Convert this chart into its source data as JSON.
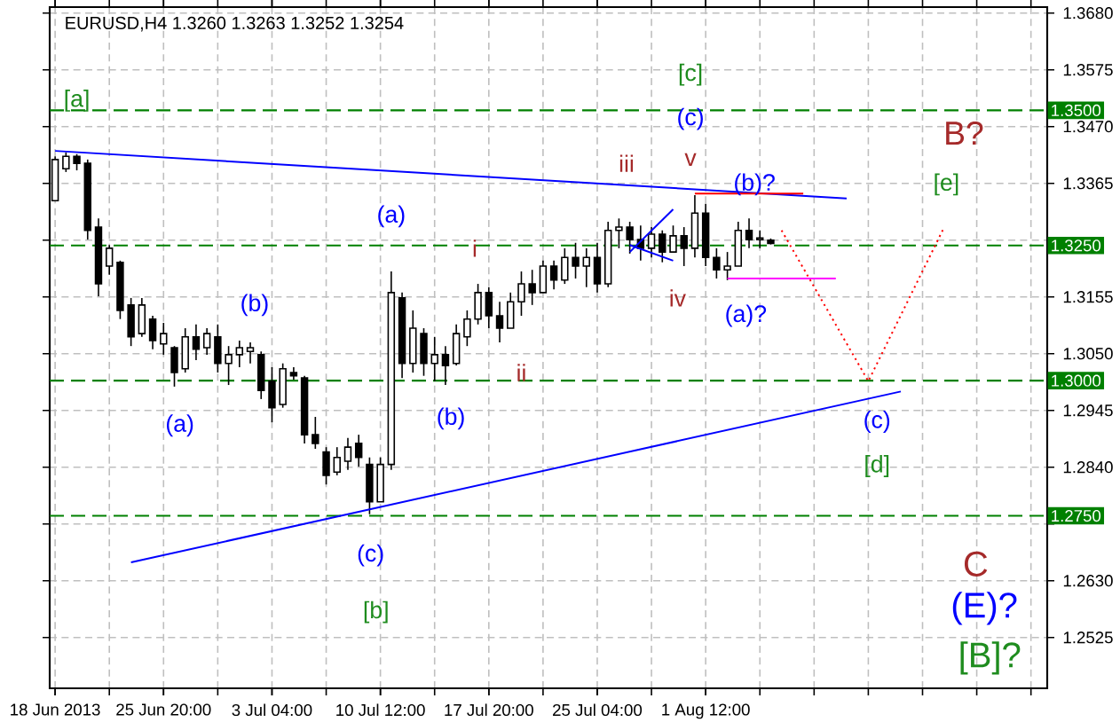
{
  "chart_data": {
    "type": "candlestick",
    "title": "EURUSD,H4  1.3260 1.3263 1.3252 1.3254",
    "color": "#000000",
    "categories": [
      "18 Jun 2013",
      null,
      null,
      null,
      null,
      null,
      null,
      null,
      null,
      null,
      "25 Jun 20:00",
      null,
      null,
      null,
      null,
      null,
      null,
      null,
      null,
      null,
      "3 Jul 04:00",
      null,
      null,
      null,
      null,
      null,
      null,
      null,
      null,
      null,
      "10 Jul 12:00",
      null,
      null,
      null,
      null,
      null,
      null,
      null,
      null,
      null,
      "17 Jul 20:00",
      null,
      null,
      null,
      null,
      null,
      null,
      null,
      null,
      null,
      "25 Jul 04:00",
      null,
      null,
      null,
      null,
      null,
      null,
      null,
      null,
      null,
      "1 Aug 12:00",
      null,
      null,
      null,
      null,
      null,
      null,
      null,
      null,
      null,
      null,
      null,
      null,
      null,
      null,
      null,
      null,
      null,
      null,
      null,
      null,
      null,
      null,
      null,
      null,
      null,
      null,
      null,
      null,
      null,
      null,
      null
    ],
    "ohlc": [
      [
        1.3333,
        1.3415,
        1.3333,
        1.3409
      ],
      [
        1.3392,
        1.3422,
        1.3386,
        1.3415
      ],
      [
        1.3415,
        1.3419,
        1.3389,
        1.3402
      ],
      [
        1.3402,
        1.3409,
        1.3261,
        1.3278
      ],
      [
        1.3284,
        1.33,
        1.3156,
        1.3179
      ],
      [
        1.3212,
        1.3251,
        1.3196,
        1.3245
      ],
      [
        1.3219,
        1.3222,
        1.3114,
        1.313
      ],
      [
        1.314,
        1.3153,
        1.3064,
        1.3081
      ],
      [
        1.3087,
        1.3153,
        1.3081,
        1.314
      ],
      [
        1.3114,
        1.312,
        1.3058,
        1.3074
      ],
      [
        1.3068,
        1.3107,
        1.3048,
        1.3087
      ],
      [
        1.3061,
        1.3064,
        1.2989,
        1.3015
      ],
      [
        1.3022,
        1.3097,
        1.3015,
        1.3081
      ],
      [
        1.3081,
        1.3104,
        1.3038,
        1.3058
      ],
      [
        1.3061,
        1.3097,
        1.3048,
        1.3087
      ],
      [
        1.3081,
        1.3104,
        1.3015,
        1.3032
      ],
      [
        1.3032,
        1.3064,
        1.2992,
        1.3048
      ],
      [
        1.3048,
        1.3074,
        1.3025,
        1.3061
      ],
      [
        1.3054,
        1.3071,
        1.3032,
        1.3061
      ],
      [
        1.3048,
        1.3054,
        1.2966,
        1.2982
      ],
      [
        1.2999,
        1.3025,
        1.2923,
        1.295
      ],
      [
        1.2956,
        1.3032,
        1.295,
        1.3022
      ],
      [
        1.3015,
        1.3025,
        1.3002,
        1.3009
      ],
      [
        1.3005,
        1.3009,
        1.2884,
        1.29
      ],
      [
        1.29,
        1.2933,
        1.2874,
        1.2884
      ],
      [
        1.2868,
        1.2877,
        1.2808,
        1.2825
      ],
      [
        1.2831,
        1.2877,
        1.2825,
        1.2858
      ],
      [
        1.2851,
        1.2894,
        1.2835,
        1.2877
      ],
      [
        1.2884,
        1.29,
        1.2841,
        1.2858
      ],
      [
        1.2845,
        1.2858,
        1.2753,
        1.2776
      ],
      [
        1.2776,
        1.2858,
        1.2776,
        1.2845
      ],
      [
        1.2845,
        1.3202,
        1.2835,
        1.3163
      ],
      [
        1.3153,
        1.3163,
        1.3005,
        1.3032
      ],
      [
        1.3032,
        1.313,
        1.3015,
        1.3097
      ],
      [
        1.3087,
        1.3097,
        1.3009,
        1.3032
      ],
      [
        1.3032,
        1.3081,
        1.2999,
        1.3048
      ],
      [
        1.3048,
        1.3064,
        1.2992,
        1.3028
      ],
      [
        1.3032,
        1.3104,
        1.3028,
        1.3087
      ],
      [
        1.3081,
        1.313,
        1.3064,
        1.3114
      ],
      [
        1.3114,
        1.3179,
        1.3104,
        1.3163
      ],
      [
        1.3163,
        1.3173,
        1.3097,
        1.312
      ],
      [
        1.312,
        1.3146,
        1.3071,
        1.3097
      ],
      [
        1.3097,
        1.3163,
        1.3097,
        1.3146
      ],
      [
        1.3146,
        1.3202,
        1.312,
        1.3179
      ],
      [
        1.3179,
        1.3205,
        1.314,
        1.3163
      ],
      [
        1.3163,
        1.3222,
        1.3163,
        1.3212
      ],
      [
        1.3212,
        1.3222,
        1.3169,
        1.3186
      ],
      [
        1.3186,
        1.3245,
        1.3179,
        1.3228
      ],
      [
        1.3228,
        1.3255,
        1.3189,
        1.3212
      ],
      [
        1.3212,
        1.3245,
        1.3173,
        1.3228
      ],
      [
        1.3228,
        1.3255,
        1.3163,
        1.3179
      ],
      [
        1.3179,
        1.3294,
        1.3173,
        1.3278
      ],
      [
        1.3278,
        1.33,
        1.3245,
        1.3284
      ],
      [
        1.3284,
        1.3294,
        1.3235,
        1.3261
      ],
      [
        1.3261,
        1.3287,
        1.3222,
        1.3245
      ],
      [
        1.3245,
        1.3284,
        1.3228,
        1.3271
      ],
      [
        1.3271,
        1.3278,
        1.3219,
        1.3238
      ],
      [
        1.3238,
        1.3287,
        1.3238,
        1.3268
      ],
      [
        1.3268,
        1.3284,
        1.3212,
        1.3245
      ],
      [
        1.3245,
        1.3343,
        1.3228,
        1.331
      ],
      [
        1.331,
        1.3327,
        1.3212,
        1.3228
      ],
      [
        1.3228,
        1.3245,
        1.3189,
        1.3205
      ],
      [
        1.3205,
        1.3238,
        1.3186,
        1.3212
      ],
      [
        1.3212,
        1.3294,
        1.3212,
        1.3278
      ],
      [
        1.3278,
        1.33,
        1.3245,
        1.3261
      ],
      [
        1.3261,
        1.3278,
        1.3245,
        1.3264
      ],
      [
        1.326,
        1.3263,
        1.3252,
        1.3254
      ],
      null,
      null,
      null,
      null,
      null,
      null,
      null,
      null,
      null,
      null,
      null,
      null,
      null,
      null,
      null,
      null,
      null,
      null,
      null,
      null,
      null,
      null,
      null,
      null,
      null
    ],
    "series": [
      {
        "type": "line",
        "color": "#0000ff",
        "values": [
          1.3425,
          null,
          null,
          null,
          null,
          null,
          null,
          null,
          null,
          null,
          null,
          null,
          null,
          null,
          null,
          null,
          null,
          null,
          null,
          null,
          null,
          null,
          null,
          null,
          null,
          null,
          null,
          null,
          null,
          null,
          null,
          null,
          null,
          null,
          null,
          null,
          null,
          null,
          null,
          null,
          null,
          null,
          null,
          null,
          null,
          null,
          null,
          null,
          null,
          null,
          null,
          null,
          null,
          null,
          null,
          null,
          null,
          null,
          null,
          null,
          null,
          null,
          null,
          null,
          null,
          null,
          null,
          null,
          null,
          null,
          null,
          null,
          null,
          1.3337,
          null,
          null,
          null,
          null,
          null,
          null,
          null,
          null,
          null,
          null,
          null,
          null,
          null,
          null,
          null,
          null,
          null,
          null
        ]
      },
      {
        "type": "line",
        "color": "#0000ff",
        "values": [
          null,
          null,
          null,
          null,
          null,
          null,
          null,
          1.2664,
          null,
          null,
          null,
          null,
          null,
          null,
          null,
          null,
          null,
          null,
          null,
          null,
          null,
          null,
          null,
          null,
          null,
          null,
          null,
          null,
          null,
          null,
          null,
          null,
          null,
          null,
          null,
          null,
          null,
          null,
          null,
          null,
          null,
          null,
          null,
          null,
          null,
          null,
          null,
          null,
          null,
          null,
          null,
          null,
          null,
          null,
          null,
          null,
          null,
          null,
          null,
          null,
          null,
          null,
          null,
          null,
          null,
          null,
          null,
          null,
          null,
          null,
          null,
          null,
          null,
          null,
          null,
          null,
          null,
          null,
          1.298,
          null,
          null,
          null,
          null,
          null,
          null,
          null,
          null,
          null,
          null,
          null,
          null,
          null
        ]
      },
      {
        "type": "line",
        "color": "#0000ff",
        "values": [
          null,
          null,
          null,
          null,
          null,
          null,
          null,
          null,
          null,
          null,
          null,
          null,
          null,
          null,
          null,
          null,
          null,
          null,
          null,
          null,
          null,
          null,
          null,
          null,
          null,
          null,
          null,
          null,
          null,
          null,
          null,
          null,
          null,
          null,
          null,
          null,
          null,
          null,
          null,
          null,
          null,
          null,
          null,
          null,
          null,
          null,
          null,
          null,
          null,
          null,
          null,
          null,
          null,
          1.3238,
          null,
          null,
          null,
          1.3317,
          null,
          null,
          null,
          null,
          null,
          null,
          null,
          null,
          null,
          null,
          null,
          null,
          null,
          null,
          null,
          null,
          null,
          null,
          null,
          null,
          null,
          null,
          null,
          null,
          null,
          null,
          null,
          null,
          null,
          null,
          null,
          null,
          null,
          null
        ]
      },
      {
        "type": "line",
        "color": "#0000ff",
        "values": [
          null,
          null,
          null,
          null,
          null,
          null,
          null,
          null,
          null,
          null,
          null,
          null,
          null,
          null,
          null,
          null,
          null,
          null,
          null,
          null,
          null,
          null,
          null,
          null,
          null,
          null,
          null,
          null,
          null,
          null,
          null,
          null,
          null,
          null,
          null,
          null,
          null,
          null,
          null,
          null,
          null,
          null,
          null,
          null,
          null,
          null,
          null,
          null,
          null,
          null,
          null,
          null,
          null,
          1.3251,
          null,
          null,
          null,
          1.3222,
          null,
          null,
          null,
          null,
          null,
          null,
          null,
          null,
          null,
          null,
          null,
          null,
          null,
          null,
          null,
          null,
          null,
          null,
          null,
          null,
          null,
          null,
          null,
          null,
          null,
          null,
          null,
          null,
          null,
          null,
          null,
          null,
          null,
          null
        ]
      },
      {
        "type": "line",
        "color": "#ff0000",
        "values": [
          null,
          null,
          null,
          null,
          null,
          null,
          null,
          null,
          null,
          null,
          null,
          null,
          null,
          null,
          null,
          null,
          null,
          null,
          null,
          null,
          null,
          null,
          null,
          null,
          null,
          null,
          null,
          null,
          null,
          null,
          null,
          null,
          null,
          null,
          null,
          null,
          null,
          null,
          null,
          null,
          null,
          null,
          null,
          null,
          null,
          null,
          null,
          null,
          null,
          null,
          null,
          null,
          null,
          null,
          null,
          null,
          null,
          null,
          null,
          1.3346,
          null,
          null,
          null,
          null,
          null,
          null,
          null,
          null,
          null,
          1.3346,
          null,
          null,
          null,
          null,
          null,
          null,
          null,
          null,
          null,
          null,
          null,
          null,
          null,
          null,
          null,
          null,
          null,
          null,
          null,
          null,
          null,
          null
        ]
      },
      {
        "type": "line",
        "color": "#ff00ff",
        "values": [
          null,
          null,
          null,
          null,
          null,
          null,
          null,
          null,
          null,
          null,
          null,
          null,
          null,
          null,
          null,
          null,
          null,
          null,
          null,
          null,
          null,
          null,
          null,
          null,
          null,
          null,
          null,
          null,
          null,
          null,
          null,
          null,
          null,
          null,
          null,
          null,
          null,
          null,
          null,
          null,
          null,
          null,
          null,
          null,
          null,
          null,
          null,
          null,
          null,
          null,
          null,
          null,
          null,
          null,
          null,
          null,
          null,
          null,
          null,
          null,
          null,
          null,
          1.3189,
          null,
          null,
          null,
          null,
          null,
          null,
          null,
          null,
          null,
          1.3189,
          null,
          null,
          null,
          null,
          null,
          null,
          null,
          null,
          null,
          null,
          null,
          null,
          null,
          null,
          null,
          null,
          null,
          null,
          null
        ]
      },
      {
        "type": "line",
        "color": "#ff0000",
        "line_style": "dotted",
        "values": [
          null,
          null,
          null,
          null,
          null,
          null,
          null,
          null,
          null,
          null,
          null,
          null,
          null,
          null,
          null,
          null,
          null,
          null,
          null,
          null,
          null,
          null,
          null,
          null,
          null,
          null,
          null,
          null,
          null,
          null,
          null,
          null,
          null,
          null,
          null,
          null,
          null,
          null,
          null,
          null,
          null,
          null,
          null,
          null,
          null,
          null,
          null,
          null,
          null,
          null,
          null,
          null,
          null,
          null,
          null,
          null,
          null,
          null,
          null,
          null,
          null,
          null,
          null,
          null,
          null,
          null,
          null,
          1.3278,
          null,
          null,
          null,
          null,
          null,
          null,
          null,
          1.2999,
          null,
          null,
          null,
          null,
          null,
          null,
          1.3284,
          null,
          null,
          null,
          null,
          null,
          null,
          null,
          null,
          null
        ]
      }
    ],
    "ref_lines": [
      {
        "axis": "y",
        "value": 1.35,
        "label": "1.3500",
        "color": "#008000",
        "line_style": "dashed"
      },
      {
        "axis": "y",
        "value": 1.325,
        "label": "1.3250",
        "color": "#008000",
        "line_style": "dashed"
      },
      {
        "axis": "y",
        "value": 1.3,
        "label": "1.3000",
        "color": "#008000",
        "line_style": "dashed"
      },
      {
        "axis": "y",
        "value": 1.275,
        "label": "1.2750",
        "color": "#008000",
        "line_style": "dashed"
      }
    ],
    "annotations": [
      "[a]",
      "(a)",
      "(b)",
      "(a)",
      "(b)",
      "(c)",
      "[b]",
      "i",
      "ii",
      "iii",
      "iv",
      "v",
      "[c]",
      "(c)",
      "(b)?",
      "(a)?",
      "B?",
      "[e]",
      "(c)",
      "[d]",
      "C",
      "(E)?",
      "[B]?"
    ],
    "ylim": [
      1.2431,
      1.3691
    ],
    "yticks": [
      1.2525,
      {
        "value": 1.263,
        "label": "1.2630"
      },
      {
        "value": 1.2735,
        "label": null
      },
      {
        "value": 1.284,
        "label": "1.2840"
      },
      1.2945,
      {
        "value": 1.305,
        "label": "1.3050"
      },
      1.3155,
      {
        "value": 1.326,
        "label": null
      },
      1.3365,
      {
        "value": 1.347,
        "label": "1.3470"
      },
      1.3575,
      {
        "value": 1.368,
        "label": "1.3680"
      }
    ],
    "grid": true
  }
}
